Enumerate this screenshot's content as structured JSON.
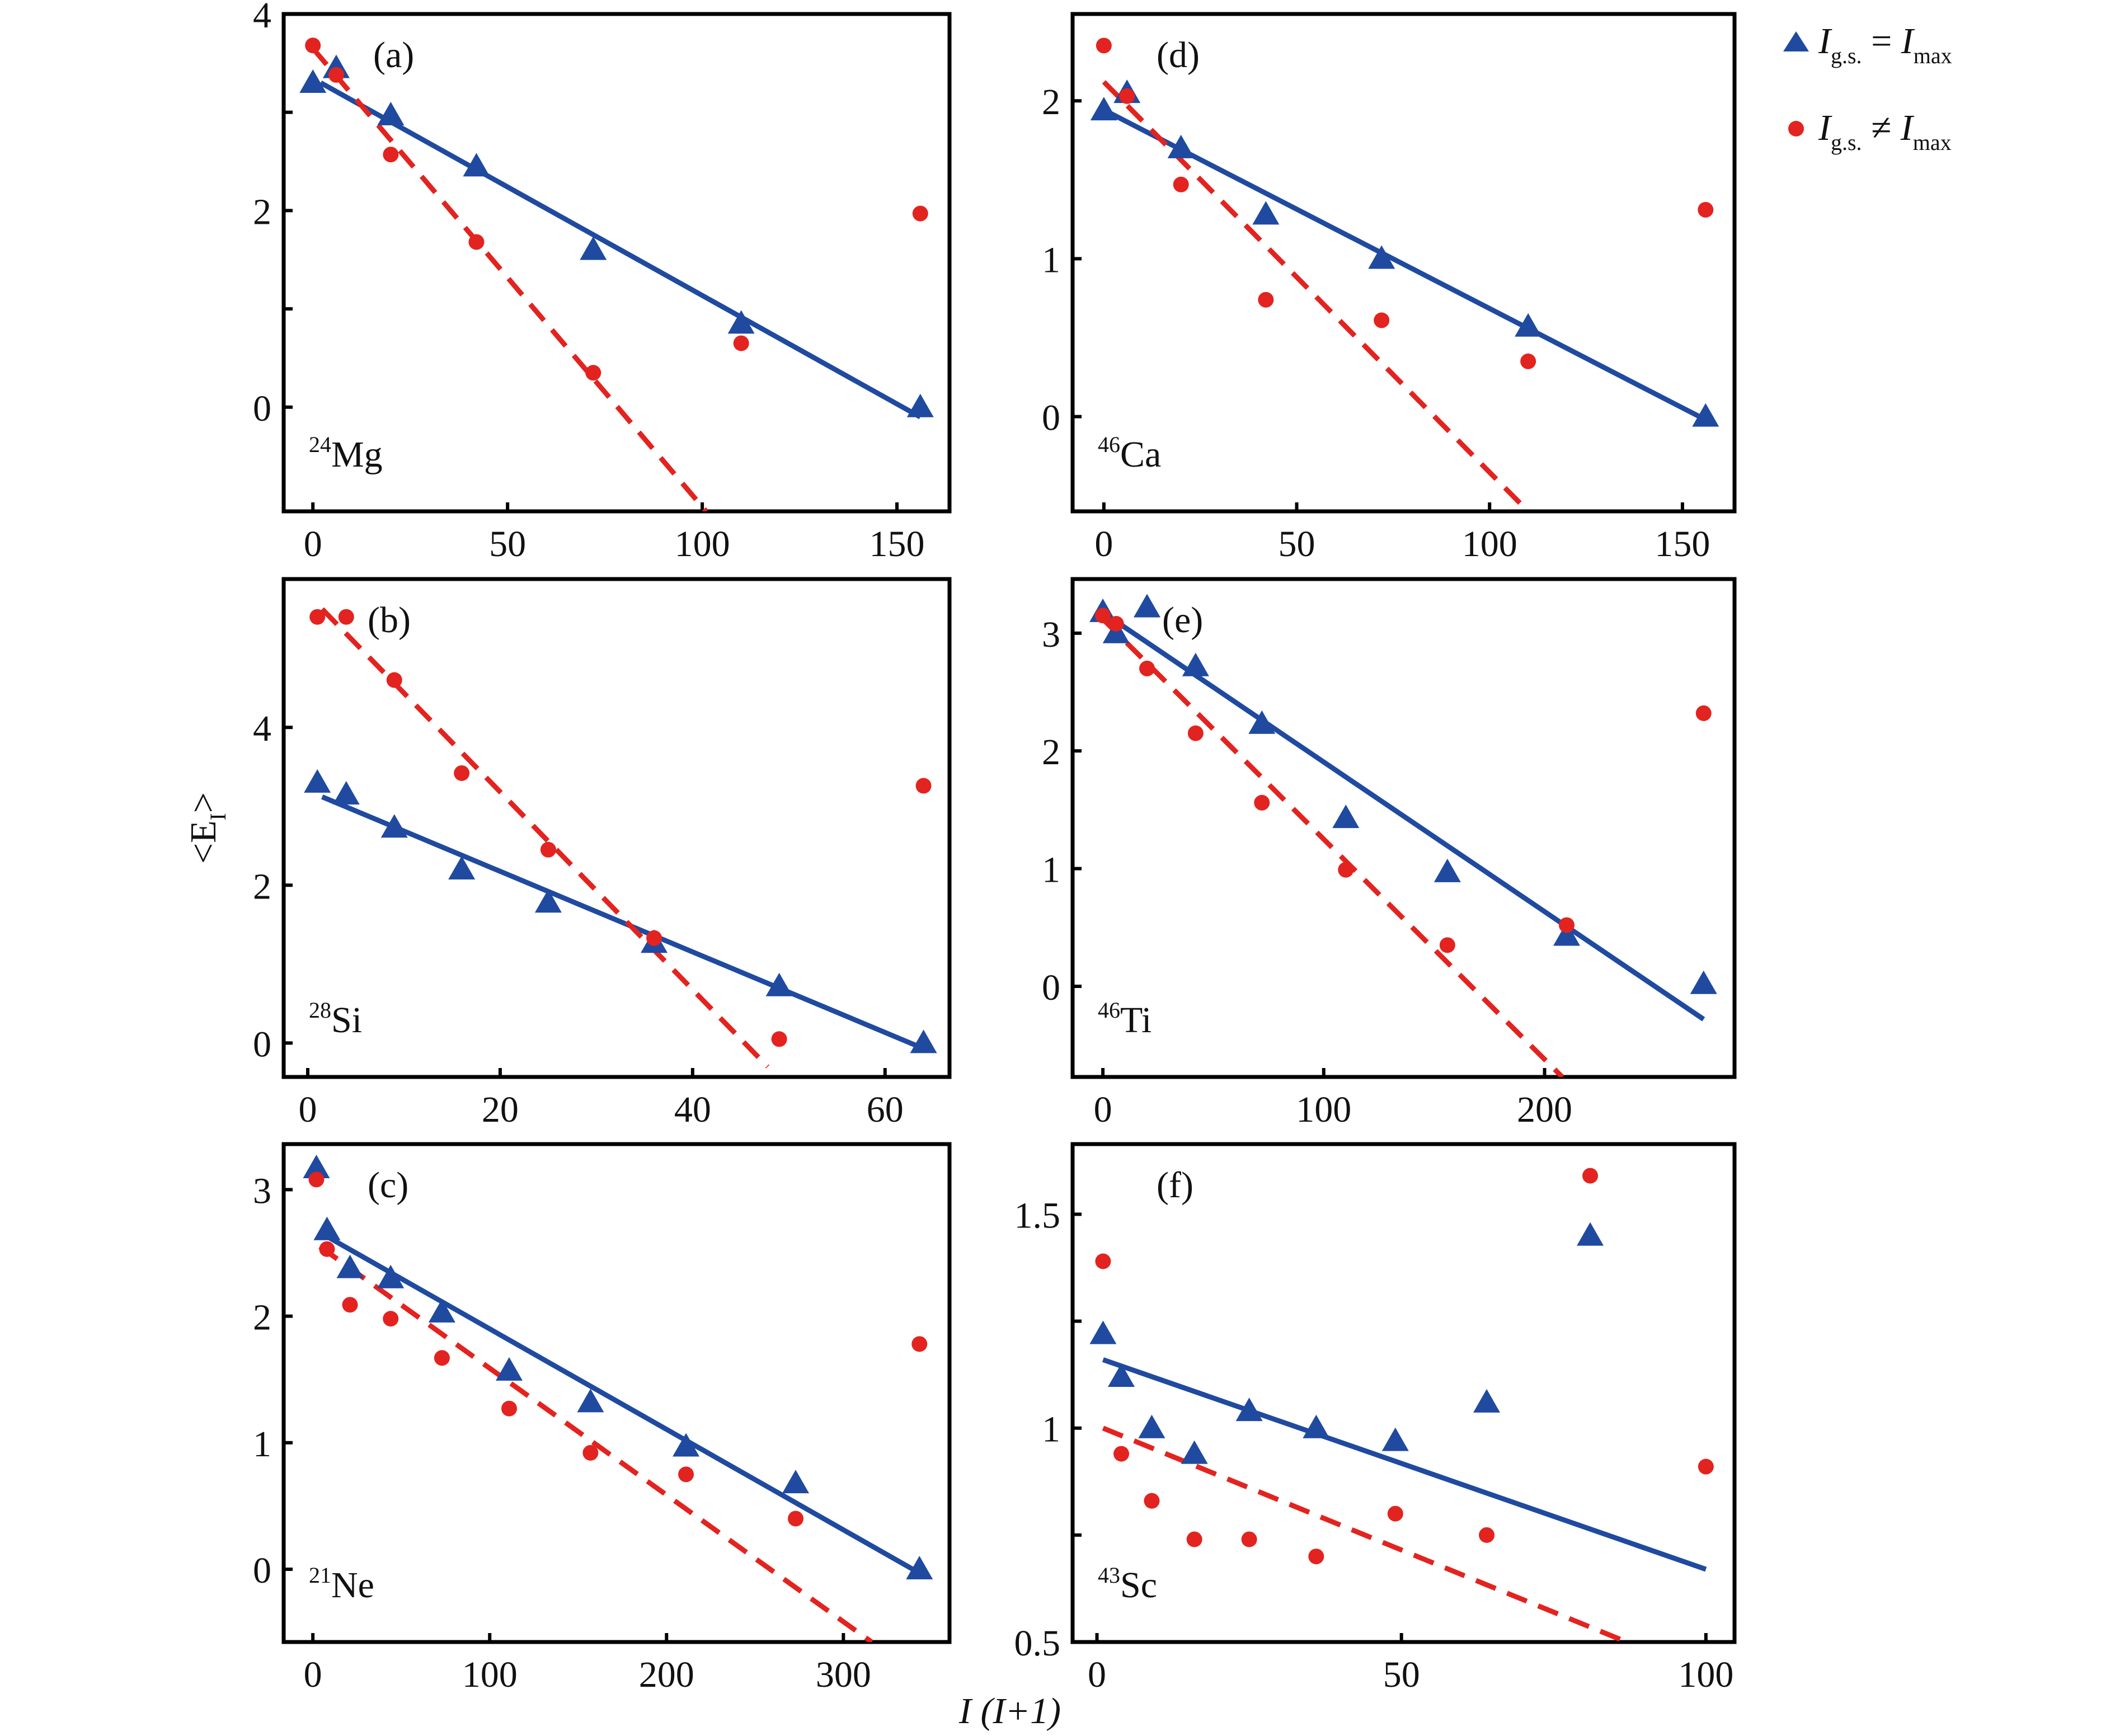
{
  "figure": {
    "y_axis_title": "<E",
    "y_axis_title_sub": "I",
    "y_axis_title_end": ">",
    "x_axis_title": "I (I+1)",
    "legend": [
      {
        "marker": "triangle",
        "color": "#1f4aa0",
        "main": "I",
        "sub": "g.s.",
        "relation": " = ",
        "rhs": "I",
        "rhs_sub": "max"
      },
      {
        "marker": "circle",
        "color": "#e3231f",
        "main": "I",
        "sub": "g.s.",
        "relation": " ≠ ",
        "rhs": "I",
        "rhs_sub": "max"
      }
    ]
  },
  "colors": {
    "series_equal": "#1f4aa0",
    "series_unequal": "#e3231f",
    "axes": "#000000"
  },
  "chart_data": [
    {
      "type": "scatter",
      "panel": "(a)",
      "nucleus_mass": "24",
      "nucleus_symbol": "Mg",
      "xlim": [
        -7.5,
        163.5
      ],
      "ylim": [
        -1.06,
        4
      ],
      "xticks": [
        0,
        50,
        100,
        150
      ],
      "yticks": [
        0,
        2,
        4
      ],
      "yticks_minor": [
        1,
        3
      ],
      "xlabel": "I (I+1)",
      "ylabel": "<E_I>",
      "series": [
        {
          "name": "I_g.s. = I_max",
          "marker": "triangle",
          "x": [
            0,
            6,
            20,
            42,
            72,
            110,
            156
          ],
          "y": [
            3.3,
            3.45,
            2.97,
            2.45,
            1.6,
            0.85,
            0.0
          ]
        },
        {
          "name": "I_g.s. ≠ I_max",
          "marker": "circle",
          "x": [
            0,
            6,
            20,
            42,
            72,
            110,
            156
          ],
          "y": [
            3.68,
            3.38,
            2.57,
            1.68,
            0.35,
            0.65,
            1.97
          ]
        }
      ],
      "fits": [
        {
          "series": "I_g.s. = I_max",
          "style": "solid",
          "x": [
            2,
            156
          ],
          "y": [
            3.3,
            -0.1
          ]
        },
        {
          "series": "I_g.s. ≠ I_max",
          "style": "dashed",
          "x": [
            0,
            101
          ],
          "y": [
            3.65,
            -1.06
          ]
        }
      ]
    },
    {
      "type": "scatter",
      "panel": "(b)",
      "nucleus_mass": "28",
      "nucleus_symbol": "Si",
      "xlim": [
        -2.5,
        66.7
      ],
      "ylim": [
        -0.43,
        5.88
      ],
      "xticks": [
        0,
        20,
        40,
        60
      ],
      "yticks": [
        0,
        2,
        4
      ],
      "yticks_minor": [],
      "xlabel": "I (I+1)",
      "ylabel": "<E_I>",
      "series": [
        {
          "name": "I_g.s. = I_max",
          "marker": "triangle",
          "x": [
            1,
            4,
            9,
            16,
            25,
            36,
            49,
            64
          ],
          "y": [
            3.3,
            3.15,
            2.73,
            2.2,
            1.78,
            1.27,
            0.72,
            0.0
          ]
        },
        {
          "name": "I_g.s. ≠ I_max",
          "marker": "circle",
          "x": [
            1,
            4,
            9,
            16,
            25,
            36,
            49,
            64
          ],
          "y": [
            5.4,
            5.4,
            4.6,
            3.42,
            2.45,
            1.33,
            0.05,
            3.26
          ]
        }
      ],
      "fits": [
        {
          "series": "I_g.s. = I_max",
          "style": "solid",
          "x": [
            1.5,
            64
          ],
          "y": [
            3.12,
            -0.07
          ]
        },
        {
          "series": "I_g.s. ≠ I_max",
          "style": "dashed",
          "x": [
            1.5,
            47.8
          ],
          "y": [
            5.5,
            -0.3
          ]
        }
      ]
    },
    {
      "type": "scatter",
      "panel": "(c)",
      "nucleus_mass": "21",
      "nucleus_symbol": "Ne",
      "xlim": [
        -16.5,
        360
      ],
      "ylim": [
        -0.575,
        3.36
      ],
      "xticks": [
        0,
        100,
        200,
        300
      ],
      "yticks": [
        0,
        1,
        2,
        3
      ],
      "yticks_minor": [],
      "xlabel": "I (I+1)",
      "ylabel": "<E_I>",
      "series": [
        {
          "name": "I_g.s. = I_max",
          "marker": "triangle",
          "x": [
            2,
            8,
            21,
            44,
            73,
            111,
            157,
            211,
            273,
            343
          ],
          "y": [
            3.17,
            2.68,
            2.38,
            2.3,
            2.03,
            1.57,
            1.32,
            0.97,
            0.68,
            0.0
          ]
        },
        {
          "name": "I_g.s. ≠ I_max",
          "marker": "circle",
          "x": [
            2,
            8,
            21,
            44,
            73,
            111,
            157,
            211,
            273,
            343
          ],
          "y": [
            3.08,
            2.53,
            2.09,
            1.98,
            1.67,
            1.27,
            0.92,
            0.75,
            0.4,
            1.78
          ]
        }
      ],
      "fits": [
        {
          "series": "I_g.s. = I_max",
          "style": "solid",
          "x": [
            8,
            343
          ],
          "y": [
            2.63,
            -0.03
          ]
        },
        {
          "series": "I_g.s. ≠ I_max",
          "style": "dashed",
          "x": [
            4,
            316
          ],
          "y": [
            2.55,
            -0.575
          ]
        }
      ]
    },
    {
      "type": "scatter",
      "panel": "(d)",
      "nucleus_mass": "46",
      "nucleus_symbol": "Ca",
      "xlim": [
        -8.1,
        163.5
      ],
      "ylim": [
        -0.6,
        2.55
      ],
      "xticks": [
        0,
        50,
        100,
        150
      ],
      "yticks": [
        0,
        1,
        2
      ],
      "yticks_minor": [],
      "xlabel": "I (I+1)",
      "ylabel": "<E_I>",
      "series": [
        {
          "name": "I_g.s. = I_max",
          "marker": "triangle",
          "x": [
            0,
            6,
            20,
            42,
            72,
            110,
            156
          ],
          "y": [
            1.94,
            2.05,
            1.7,
            1.28,
            1.0,
            0.57,
            0.0
          ]
        },
        {
          "name": "I_g.s. ≠ I_max",
          "marker": "circle",
          "x": [
            0,
            6,
            20,
            42,
            72,
            110,
            156
          ],
          "y": [
            2.35,
            2.03,
            1.47,
            0.74,
            0.61,
            0.35,
            1.31
          ]
        }
      ],
      "fits": [
        {
          "series": "I_g.s. = I_max",
          "style": "solid",
          "x": [
            1,
            156
          ],
          "y": [
            1.93,
            -0.02
          ]
        },
        {
          "series": "I_g.s. ≠ I_max",
          "style": "dashed",
          "x": [
            0,
            110
          ],
          "y": [
            2.12,
            -0.6
          ]
        }
      ]
    },
    {
      "type": "scatter",
      "panel": "(e)",
      "nucleus_mass": "46",
      "nucleus_symbol": "Ti",
      "xlim": [
        -13.7,
        286
      ],
      "ylim": [
        -0.77,
        3.46
      ],
      "xticks": [
        0,
        100,
        200
      ],
      "yticks": [
        0,
        1,
        2,
        3
      ],
      "yticks_minor": [],
      "xlabel": "I (I+1)",
      "ylabel": "<E_I>",
      "series": [
        {
          "name": "I_g.s. = I_max",
          "marker": "triangle",
          "x": [
            0,
            6,
            20,
            42,
            72,
            110,
            156,
            210,
            272
          ],
          "y": [
            3.18,
            3.0,
            3.22,
            2.72,
            2.23,
            1.43,
            0.97,
            0.43,
            0.02
          ]
        },
        {
          "name": "I_g.s. ≠ I_max",
          "marker": "circle",
          "x": [
            0,
            6,
            20,
            42,
            72,
            110,
            156,
            210,
            272
          ],
          "y": [
            3.15,
            3.08,
            2.7,
            2.15,
            1.56,
            0.99,
            0.35,
            0.52,
            2.32
          ]
        }
      ],
      "fits": [
        {
          "series": "I_g.s. = I_max",
          "style": "solid",
          "x": [
            6,
            272
          ],
          "y": [
            3.1,
            -0.28
          ]
        },
        {
          "series": "I_g.s. ≠ I_max",
          "style": "dashed",
          "x": [
            0,
            208
          ],
          "y": [
            3.12,
            -0.77
          ]
        }
      ]
    },
    {
      "type": "scatter",
      "panel": "(f)",
      "nucleus_mass": "43",
      "nucleus_symbol": "Sc",
      "xlim": [
        -4.0,
        104.7
      ],
      "ylim": [
        0.5,
        1.664
      ],
      "xticks": [
        0,
        50,
        100
      ],
      "yticks": [
        0.5,
        1,
        1.5
      ],
      "yticks_minor": [
        0.75,
        1.25
      ],
      "xlabel": "I (I+1)",
      "ylabel": "<E_I>",
      "series": [
        {
          "name": "I_g.s. = I_max",
          "marker": "triangle",
          "x": [
            1,
            4,
            9,
            16,
            25,
            36,
            49,
            64,
            81
          ],
          "y": [
            1.22,
            1.12,
            1.0,
            0.94,
            1.04,
            1.0,
            0.97,
            1.06,
            1.45
          ]
        },
        {
          "name": "I_g.s. ≠ I_max",
          "marker": "circle",
          "x": [
            1,
            4,
            9,
            16,
            25,
            36,
            49,
            64,
            81,
            100
          ],
          "y": [
            1.39,
            0.94,
            0.83,
            0.74,
            0.74,
            0.7,
            0.8,
            0.75,
            1.59,
            0.91
          ]
        }
      ],
      "fits": [
        {
          "series": "I_g.s. = I_max",
          "style": "solid",
          "x": [
            1,
            100
          ],
          "y": [
            1.16,
            0.67
          ]
        },
        {
          "series": "I_g.s. ≠ I_max",
          "style": "dashed",
          "x": [
            1,
            87
          ],
          "y": [
            1.0,
            0.5
          ]
        }
      ]
    }
  ]
}
